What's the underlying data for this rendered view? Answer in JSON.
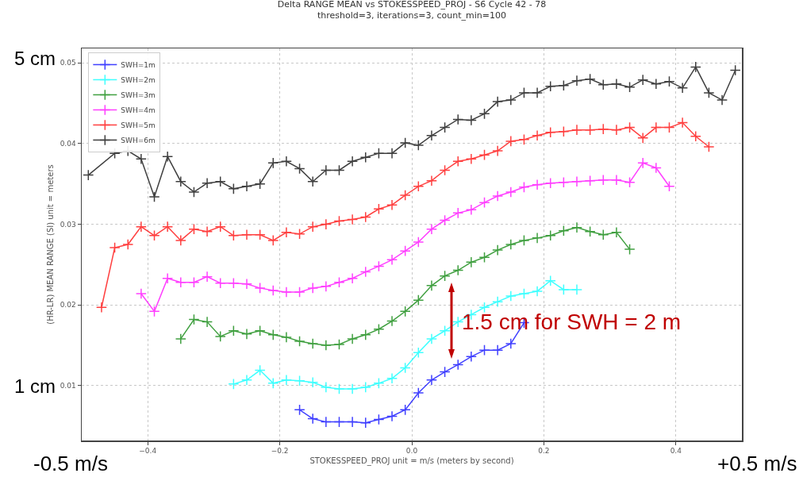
{
  "chart_data": {
    "type": "line",
    "title": "Delta RANGE MEAN vs STOKESSPEED_PROJ - S6 Cycle 42 - 78",
    "subtitle": "threshold=3, iterations=3, count_min=100",
    "xlabel": "STOKESSPEED_PROJ unit = m/s (meters by second)",
    "ylabel": "(HR-LR) MEAN RANGE (SI) unit = meters",
    "annotations": [
      "5 cm",
      "1 cm",
      "-0.5 m/s",
      "+0.5 m/s",
      "1.5 cm for SWH = 2 m"
    ],
    "xlim": [
      -0.5,
      0.5
    ],
    "xticks": [
      {
        "value": -0.4,
        "label": "−0.4"
      },
      {
        "value": -0.2,
        "label": "−0.2"
      },
      {
        "value": 0,
        "label": "0.0"
      },
      0.2,
      0.4
    ],
    "ylim": [
      0.0032,
      0.0518
    ],
    "yticks": [
      0.01,
      0.02,
      0.03,
      0.04,
      0.05
    ],
    "grid": true,
    "legend": "top left",
    "marker": "cross",
    "line_style": "solid",
    "series": [
      {
        "name": "SWH=1m",
        "color": "#0000ff",
        "x": [
          -0.17,
          -0.15,
          -0.13,
          -0.11,
          -0.09,
          -0.07,
          -0.05,
          -0.03,
          -0.01,
          0.01,
          0.03,
          0.05,
          0.07,
          0.09,
          0.11,
          0.13,
          0.15,
          0.17
        ],
        "values": [
          0.007,
          0.0059,
          0.0055,
          0.0055,
          0.0055,
          0.0054,
          0.0058,
          0.0062,
          0.007,
          0.0091,
          0.0107,
          0.0117,
          0.0126,
          0.0136,
          0.0144,
          0.0144,
          0.0152,
          0.0178
        ]
      },
      {
        "name": "SWH=2m",
        "color": "#00ffff",
        "x": [
          -0.27,
          -0.25,
          -0.23,
          -0.21,
          -0.19,
          -0.17,
          -0.15,
          -0.13,
          -0.11,
          -0.09,
          -0.07,
          -0.05,
          -0.03,
          -0.01,
          0.01,
          0.03,
          0.05,
          0.07,
          0.09,
          0.11,
          0.13,
          0.15,
          0.17,
          0.19,
          0.21,
          0.23,
          0.25
        ],
        "values": [
          0.0102,
          0.0107,
          0.0119,
          0.0103,
          0.0107,
          0.0106,
          0.0104,
          0.0098,
          0.0096,
          0.0096,
          0.0098,
          0.0103,
          0.0109,
          0.0122,
          0.0141,
          0.0158,
          0.0168,
          0.0179,
          0.0188,
          0.0197,
          0.0204,
          0.0211,
          0.0214,
          0.0217,
          0.023,
          0.0219,
          0.0219
        ]
      },
      {
        "name": "SWH=3m",
        "color": "#008000",
        "x": [
          -0.35,
          -0.33,
          -0.31,
          -0.29,
          -0.27,
          -0.25,
          -0.23,
          -0.21,
          -0.19,
          -0.17,
          -0.15,
          -0.13,
          -0.11,
          -0.09,
          -0.07,
          -0.05,
          -0.03,
          -0.01,
          0.01,
          0.03,
          0.05,
          0.07,
          0.09,
          0.11,
          0.13,
          0.15,
          0.17,
          0.19,
          0.21,
          0.23,
          0.25,
          0.27,
          0.29,
          0.31,
          0.33
        ],
        "values": [
          0.0158,
          0.0182,
          0.0179,
          0.0161,
          0.0168,
          0.0164,
          0.0168,
          0.0163,
          0.016,
          0.0155,
          0.0152,
          0.015,
          0.0151,
          0.0158,
          0.0163,
          0.017,
          0.018,
          0.0192,
          0.0206,
          0.0224,
          0.0236,
          0.0243,
          0.0253,
          0.0259,
          0.0268,
          0.0275,
          0.028,
          0.0283,
          0.0286,
          0.0292,
          0.0296,
          0.0291,
          0.0287,
          0.029,
          0.0269
        ]
      },
      {
        "name": "SWH=4m",
        "color": "#ff00ff",
        "x": [
          -0.41,
          -0.39,
          -0.37,
          -0.35,
          -0.33,
          -0.31,
          -0.29,
          -0.27,
          -0.25,
          -0.23,
          -0.21,
          -0.19,
          -0.17,
          -0.15,
          -0.13,
          -0.11,
          -0.09,
          -0.07,
          -0.05,
          -0.03,
          -0.01,
          0.01,
          0.03,
          0.05,
          0.07,
          0.09,
          0.11,
          0.13,
          0.15,
          0.17,
          0.19,
          0.21,
          0.23,
          0.25,
          0.27,
          0.29,
          0.31,
          0.33,
          0.35,
          0.37,
          0.39
        ],
        "values": [
          0.0214,
          0.0192,
          0.0233,
          0.0228,
          0.0228,
          0.0235,
          0.0227,
          0.0227,
          0.0226,
          0.0221,
          0.0218,
          0.0216,
          0.0216,
          0.0221,
          0.0223,
          0.0228,
          0.0233,
          0.0241,
          0.0248,
          0.0256,
          0.0267,
          0.0278,
          0.0294,
          0.0305,
          0.0314,
          0.0318,
          0.0327,
          0.0335,
          0.034,
          0.0346,
          0.0349,
          0.0351,
          0.0352,
          0.0353,
          0.0354,
          0.0355,
          0.0355,
          0.0352,
          0.0376,
          0.037,
          0.0347
        ]
      },
      {
        "name": "SWH=5m",
        "color": "#ff0000",
        "x": [
          -0.47,
          -0.45,
          -0.43,
          -0.41,
          -0.39,
          -0.37,
          -0.35,
          -0.33,
          -0.31,
          -0.29,
          -0.27,
          -0.25,
          -0.23,
          -0.21,
          -0.19,
          -0.17,
          -0.15,
          -0.13,
          -0.11,
          -0.09,
          -0.07,
          -0.05,
          -0.03,
          -0.01,
          0.01,
          0.03,
          0.05,
          0.07,
          0.09,
          0.11,
          0.13,
          0.15,
          0.17,
          0.19,
          0.21,
          0.23,
          0.25,
          0.27,
          0.29,
          0.31,
          0.33,
          0.35,
          0.37,
          0.39,
          0.41,
          0.43,
          0.45
        ],
        "values": [
          0.0197,
          0.0271,
          0.0275,
          0.0297,
          0.0286,
          0.0297,
          0.028,
          0.0294,
          0.0291,
          0.0297,
          0.0286,
          0.0287,
          0.0287,
          0.028,
          0.029,
          0.0288,
          0.0297,
          0.03,
          0.0304,
          0.0306,
          0.0309,
          0.0319,
          0.0324,
          0.0336,
          0.0347,
          0.0354,
          0.0367,
          0.0378,
          0.0381,
          0.0386,
          0.0391,
          0.0403,
          0.0405,
          0.041,
          0.0414,
          0.0415,
          0.0417,
          0.0417,
          0.0418,
          0.0417,
          0.042,
          0.0407,
          0.042,
          0.042,
          0.0426,
          0.0409,
          0.0396
        ]
      },
      {
        "name": "SWH=6m",
        "color": "#000000",
        "x": [
          -0.49,
          -0.45,
          -0.43,
          -0.41,
          -0.39,
          -0.37,
          -0.35,
          -0.33,
          -0.31,
          -0.29,
          -0.27,
          -0.25,
          -0.23,
          -0.21,
          -0.19,
          -0.17,
          -0.15,
          -0.13,
          -0.11,
          -0.09,
          -0.07,
          -0.05,
          -0.03,
          -0.01,
          0.01,
          0.03,
          0.05,
          0.07,
          0.09,
          0.11,
          0.13,
          0.15,
          0.17,
          0.19,
          0.21,
          0.23,
          0.25,
          0.27,
          0.29,
          0.31,
          0.33,
          0.35,
          0.37,
          0.39,
          0.41,
          0.43,
          0.45,
          0.47,
          0.49
        ],
        "values": [
          0.0361,
          0.0388,
          0.0391,
          0.0381,
          0.0334,
          0.0384,
          0.0353,
          0.034,
          0.0351,
          0.0353,
          0.0344,
          0.0347,
          0.035,
          0.0376,
          0.0378,
          0.0369,
          0.0353,
          0.0367,
          0.0367,
          0.0378,
          0.0383,
          0.0388,
          0.0388,
          0.0401,
          0.0398,
          0.041,
          0.042,
          0.043,
          0.0429,
          0.0437,
          0.0452,
          0.0454,
          0.0463,
          0.0463,
          0.0471,
          0.0472,
          0.0478,
          0.048,
          0.0473,
          0.0474,
          0.047,
          0.0479,
          0.0474,
          0.0477,
          0.0469,
          0.0495,
          0.0463,
          0.0454,
          0.0491
        ]
      }
    ]
  }
}
